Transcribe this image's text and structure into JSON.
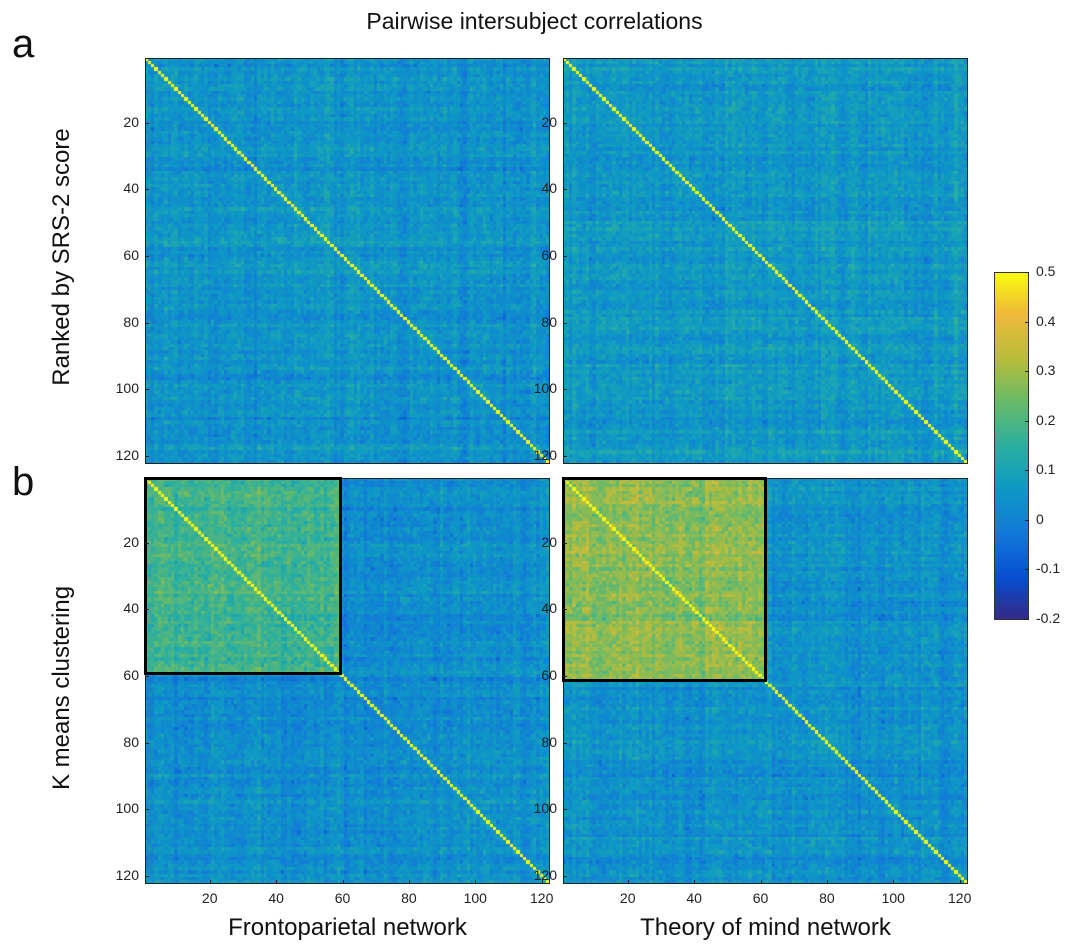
{
  "figure": {
    "title": "Pairwise intersubject correlations",
    "panel_letters": [
      "a",
      "b"
    ],
    "row_labels": [
      "Ranked by SRS-2 score",
      "K means clustering"
    ],
    "column_labels": [
      "Frontoparietal network",
      "Theory of mind network"
    ]
  },
  "colors": {
    "colormap": "parula",
    "cluster_box": "#000000"
  },
  "chart_data": [
    {
      "type": "heatmap",
      "panel": "a",
      "title": "",
      "xlabel": "",
      "ylabel": "Ranked by SRS-2 score",
      "n": 122,
      "xlim": [
        1,
        122
      ],
      "ylim": [
        1,
        122
      ],
      "x_ticks": [],
      "y_ticks": [
        20,
        40,
        60,
        80,
        100,
        120
      ],
      "network": "Frontoparietal network",
      "diagonal_value": 0.5,
      "offdiag_mean": 0.05,
      "cluster_box": null,
      "clim": [
        -0.2,
        0.5
      ]
    },
    {
      "type": "heatmap",
      "panel": "a",
      "title": "",
      "xlabel": "",
      "ylabel": "",
      "n": 122,
      "xlim": [
        1,
        122
      ],
      "ylim": [
        1,
        122
      ],
      "x_ticks": [],
      "y_ticks": [
        20,
        40,
        60,
        80,
        100,
        120
      ],
      "network": "Theory of mind network",
      "diagonal_value": 0.5,
      "offdiag_mean": 0.06,
      "cluster_box": null,
      "clim": [
        -0.2,
        0.5
      ]
    },
    {
      "type": "heatmap",
      "panel": "b",
      "title": "",
      "xlabel": "Frontoparietal network",
      "ylabel": "K means clustering",
      "n": 122,
      "xlim": [
        1,
        122
      ],
      "ylim": [
        1,
        122
      ],
      "x_ticks": [
        20,
        40,
        60,
        80,
        100,
        120
      ],
      "y_ticks": [
        20,
        40,
        60,
        80,
        100,
        120
      ],
      "network": "Frontoparietal network",
      "diagonal_value": 0.5,
      "offdiag_mean": 0.03,
      "cluster_box": {
        "start": 1,
        "end": 59,
        "mean_within": 0.18
      },
      "clim": [
        -0.2,
        0.5
      ]
    },
    {
      "type": "heatmap",
      "panel": "b",
      "title": "",
      "xlabel": "Theory of mind network",
      "ylabel": "",
      "n": 122,
      "xlim": [
        1,
        122
      ],
      "ylim": [
        1,
        122
      ],
      "x_ticks": [
        20,
        40,
        60,
        80,
        100,
        120
      ],
      "y_ticks": [
        20,
        40,
        60,
        80,
        100,
        120
      ],
      "network": "Theory of mind network",
      "diagonal_value": 0.5,
      "offdiag_mean": 0.04,
      "cluster_box": {
        "start": 1,
        "end": 61,
        "mean_within": 0.27
      },
      "clim": [
        -0.2,
        0.5
      ]
    }
  ],
  "colorbar": {
    "ticks": [
      0.5,
      0.4,
      0.3,
      0.2,
      0.1,
      0,
      -0.1,
      -0.2
    ],
    "tick_labels": [
      "0.5",
      "0.4",
      "0.3",
      "0.2",
      "0.1",
      "0",
      "-0.1",
      "-0.2"
    ],
    "clim": [
      -0.2,
      0.5
    ]
  }
}
